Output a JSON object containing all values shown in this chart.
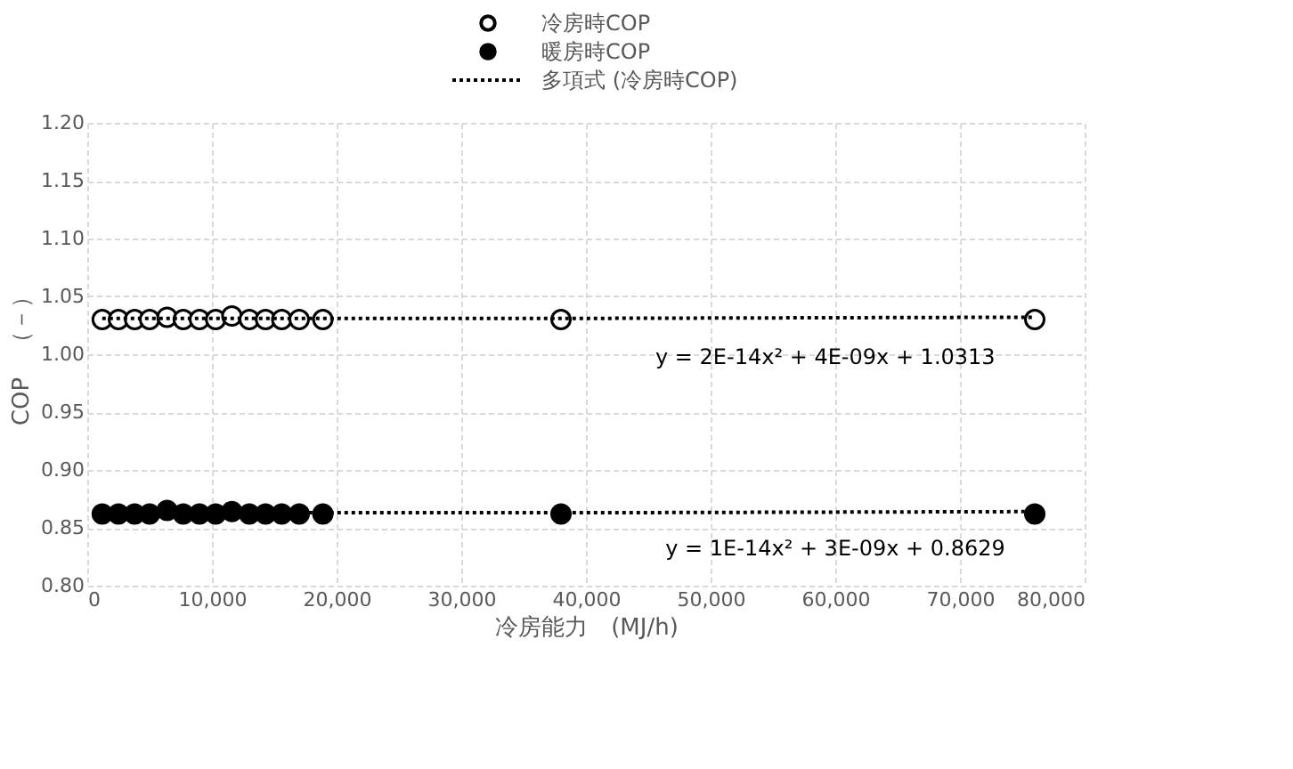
{
  "chart_data": {
    "type": "scatter",
    "xlabel": "冷房能力　(MJ/h)",
    "ylabel": "COP　（－）",
    "xlim": [
      0,
      80000
    ],
    "ylim": [
      0.8,
      1.2
    ],
    "xticks": [
      {
        "value": 0,
        "label": "0"
      },
      {
        "value": 10000,
        "label": "10,000"
      },
      {
        "value": 20000,
        "label": "20,000"
      },
      {
        "value": 30000,
        "label": "30,000"
      },
      {
        "value": 40000,
        "label": "40,000"
      },
      {
        "value": 50000,
        "label": "50,000"
      },
      {
        "value": 60000,
        "label": "60,000"
      },
      {
        "value": 70000,
        "label": "70,000"
      },
      {
        "value": 80000,
        "label": "80,000"
      }
    ],
    "yticks": [
      {
        "value": 0.8,
        "label": "0.80"
      },
      {
        "value": 0.85,
        "label": "0.85"
      },
      {
        "value": 0.9,
        "label": "0.90"
      },
      {
        "value": 0.95,
        "label": "0.95"
      },
      {
        "value": 1.0,
        "label": "1.00"
      },
      {
        "value": 1.05,
        "label": "1.05"
      },
      {
        "value": 1.1,
        "label": "1.10"
      },
      {
        "value": 1.15,
        "label": "1.15"
      },
      {
        "value": 1.2,
        "label": "1.20"
      }
    ],
    "grid": true,
    "legend": "top",
    "series": [
      {
        "name": "冷房時COP",
        "marker": "circle",
        "color": "#ffffff",
        "x": [
          1200,
          2500,
          3800,
          5000,
          6400,
          7700,
          9000,
          10300,
          11600,
          13000,
          14300,
          15600,
          17000,
          18900,
          38000,
          76000
        ],
        "values": [
          1.03,
          1.03,
          1.03,
          1.03,
          1.032,
          1.03,
          1.03,
          1.03,
          1.033,
          1.03,
          1.03,
          1.03,
          1.03,
          1.03,
          1.03,
          1.03
        ]
      },
      {
        "name": "暖房時COP",
        "marker": "circle",
        "color": "#000000",
        "x": [
          1200,
          2500,
          3800,
          5000,
          6400,
          7700,
          9000,
          10300,
          11600,
          13000,
          14300,
          15600,
          17000,
          18900,
          38000,
          76000
        ],
        "values": [
          0.862,
          0.862,
          0.862,
          0.862,
          0.865,
          0.862,
          0.862,
          0.862,
          0.864,
          0.862,
          0.862,
          0.862,
          0.862,
          0.862,
          0.862,
          0.862
        ]
      },
      {
        "name": "多項式 (冷房時COP)",
        "type": "line",
        "line_style": "dotted",
        "color": "#000000",
        "x": [
          1200,
          40000,
          76000
        ],
        "values": [
          1.031,
          1.031,
          1.032
        ]
      },
      {
        "type": "line",
        "line_style": "dotted",
        "color": "#000000",
        "x": [
          1200,
          40000,
          76000
        ],
        "values": [
          0.863,
          0.863,
          0.864
        ]
      }
    ],
    "annotations": [
      "y = 2E-14x² + 4E-09x + 1.0313",
      "y = 1E-14x² + 3E-09x + 0.8629"
    ]
  }
}
